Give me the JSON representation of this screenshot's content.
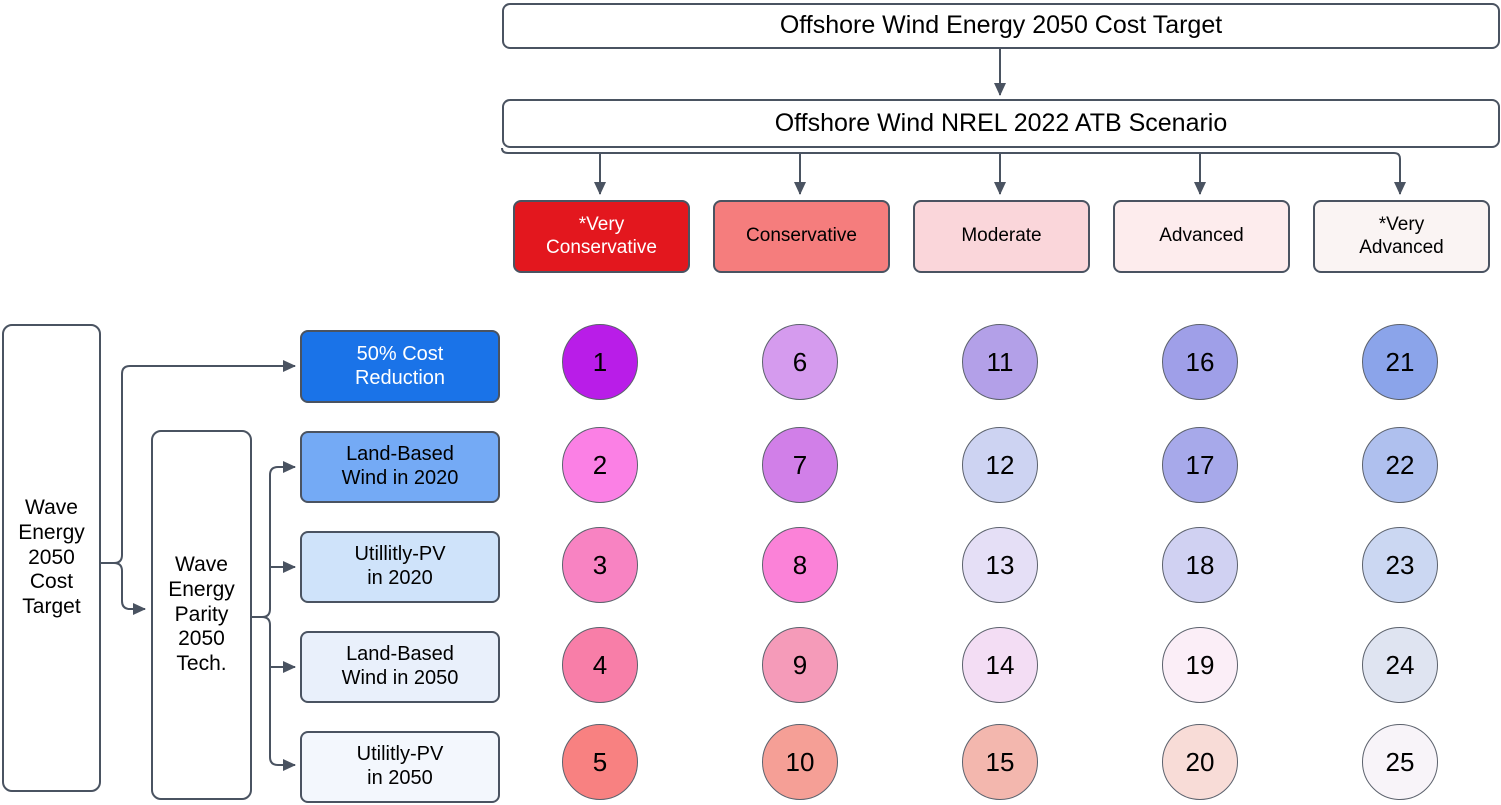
{
  "colors": {
    "line": "#4a5361",
    "node_border": "#4a5361",
    "circle_border": "#5b616c"
  },
  "offshore": {
    "title": "Offshore Wind Energy 2050 Cost Target",
    "subtitle": "Offshore Wind NREL 2022 ATB Scenario",
    "scenarios": [
      {
        "lines": [
          "*Very",
          "Conservative"
        ],
        "fill": "#e3171e",
        "text_color": "#ffffff"
      },
      {
        "lines": [
          "Conservative"
        ],
        "fill": "#f57d7d",
        "text_color": "#000000"
      },
      {
        "lines": [
          "Moderate"
        ],
        "fill": "#fad6da",
        "text_color": "#000000"
      },
      {
        "lines": [
          "Advanced"
        ],
        "fill": "#fdeced",
        "text_color": "#000000"
      },
      {
        "lines": [
          "*Very",
          "Advanced"
        ],
        "fill": "#faf4f3",
        "text_color": "#000000"
      }
    ]
  },
  "wave": {
    "root_lines": [
      "Wave",
      "Energy",
      "2050",
      "Cost",
      "Target"
    ],
    "parity_lines": [
      "Wave",
      "Energy",
      "Parity",
      "2050",
      "Tech."
    ],
    "metrics": [
      {
        "lines": [
          "50% Cost",
          "Reduction"
        ],
        "fill": "#1a73e8",
        "text_color": "#ffffff"
      },
      {
        "lines": [
          "Land-Based",
          "Wind in 2020"
        ],
        "fill": "#74aaf5",
        "text_color": "#000000"
      },
      {
        "lines": [
          "Utillitly-PV",
          "in 2020"
        ],
        "fill": "#cfe3fa",
        "text_color": "#000000"
      },
      {
        "lines": [
          "Land-Based",
          "Wind in 2050"
        ],
        "fill": "#e9f0fb",
        "text_color": "#000000"
      },
      {
        "lines": [
          "Utilitly-PV",
          "in 2050"
        ],
        "fill": "#f3f7fd",
        "text_color": "#000000"
      }
    ]
  },
  "matrix": {
    "description": "numbered cells: rows = wave metrics (top to bottom), columns = offshore scenarios (left to right), numbered down each column",
    "cells": [
      {
        "label": "1",
        "fill": "#b91de8"
      },
      {
        "label": "6",
        "fill": "#d59bee"
      },
      {
        "label": "11",
        "fill": "#b3a0e8"
      },
      {
        "label": "16",
        "fill": "#9f9fe8"
      },
      {
        "label": "21",
        "fill": "#8ba4ea"
      },
      {
        "label": "2",
        "fill": "#fb80e5"
      },
      {
        "label": "7",
        "fill": "#d17fe8"
      },
      {
        "label": "12",
        "fill": "#cdd3f2"
      },
      {
        "label": "17",
        "fill": "#a7a9ea"
      },
      {
        "label": "22",
        "fill": "#afc0ee"
      },
      {
        "label": "3",
        "fill": "#f883c2"
      },
      {
        "label": "8",
        "fill": "#fb82d8"
      },
      {
        "label": "13",
        "fill": "#e5dff6"
      },
      {
        "label": "18",
        "fill": "#d0d1f2"
      },
      {
        "label": "23",
        "fill": "#cbd7f2"
      },
      {
        "label": "4",
        "fill": "#f87ea8"
      },
      {
        "label": "9",
        "fill": "#f59bb9"
      },
      {
        "label": "14",
        "fill": "#f3ddf4"
      },
      {
        "label": "19",
        "fill": "#fbeef7"
      },
      {
        "label": "24",
        "fill": "#dfe4f1"
      },
      {
        "label": "5",
        "fill": "#f88181"
      },
      {
        "label": "10",
        "fill": "#f59f96"
      },
      {
        "label": "15",
        "fill": "#f3b7ae"
      },
      {
        "label": "20",
        "fill": "#f8dcd7"
      },
      {
        "label": "25",
        "fill": "#f8f4f9"
      }
    ]
  }
}
